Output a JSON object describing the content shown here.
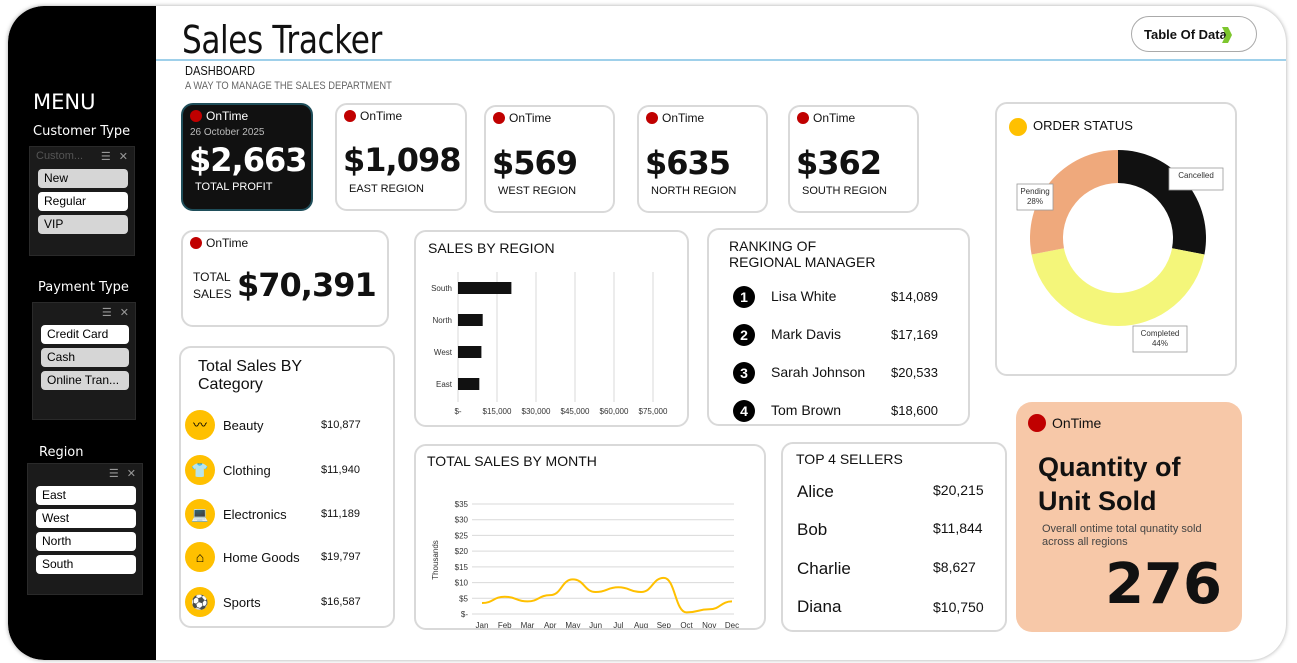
{
  "sidebar": {
    "menu_title": "MENU",
    "customer_type": {
      "label": "Customer Type",
      "header": "Custom...",
      "items": [
        "New",
        "Regular",
        "VIP"
      ]
    },
    "payment_type": {
      "label": "Payment Type",
      "items": [
        "Credit Card",
        "Cash",
        "Online Tran..."
      ]
    },
    "region": {
      "label": "Region",
      "items": [
        "East",
        "West",
        "North",
        "South"
      ]
    }
  },
  "header": {
    "title": "Sales Tracker",
    "dashboard_label": "DASHBOARD",
    "subtitle": "A WAY TO MANAGE THE SALES DEPARTMENT",
    "table_button": "Table Of Data"
  },
  "status_label": "OnTime",
  "kpis": {
    "total_profit": {
      "date": "26 October 2025",
      "value": "$2,663",
      "label": "TOTAL PROFIT"
    },
    "east": {
      "value": "$1,098",
      "label": "EAST REGION"
    },
    "west": {
      "value": "$569",
      "label": "WEST REGION"
    },
    "north": {
      "value": "$635",
      "label": "NORTH REGION"
    },
    "south": {
      "value": "$362",
      "label": "SOUTH REGION"
    },
    "total_sales": {
      "label_1": "TOTAL",
      "label_2": "SALES",
      "value": "$70,391"
    }
  },
  "category": {
    "title_1": "Total Sales BY",
    "title_2": "Category",
    "items": [
      {
        "name": "Beauty",
        "value": "$10,877",
        "icon": "beauty-icon"
      },
      {
        "name": "Clothing",
        "value": "$11,940",
        "icon": "tshirt-icon"
      },
      {
        "name": "Electronics",
        "value": "$11,189",
        "icon": "laptop-icon"
      },
      {
        "name": "Home Goods",
        "value": "$19,797",
        "icon": "home-icon"
      },
      {
        "name": "Sports",
        "value": "$16,587",
        "icon": "ball-icon"
      }
    ]
  },
  "ranking": {
    "title_1": "RANKING OF",
    "title_2": "REGIONAL MANAGER",
    "items": [
      {
        "num": "1",
        "name": "Lisa White",
        "value": "$14,089"
      },
      {
        "num": "2",
        "name": "Mark Davis",
        "value": "$17,169"
      },
      {
        "num": "3",
        "name": "Sarah Johnson",
        "value": "$20,533"
      },
      {
        "num": "4",
        "name": "Tom Brown",
        "value": "$18,600"
      }
    ]
  },
  "sellers": {
    "title": "TOP 4 SELLERS",
    "items": [
      {
        "name": "Alice",
        "value": "$20,215"
      },
      {
        "name": "Bob",
        "value": "$11,844"
      },
      {
        "name": "Charlie",
        "value": "$8,627"
      },
      {
        "name": "Diana",
        "value": "$10,750"
      }
    ]
  },
  "quantity": {
    "title_1": "Quantity of",
    "title_2": "Unit Sold",
    "desc_1": "Overall ontime total qunatity sold",
    "desc_2": "across all regions",
    "value": "276"
  },
  "colors": {
    "accent": "#ffc000",
    "status_red": "#c00000",
    "qty_bg": "#f7c8a8",
    "line": "#ffc000",
    "donut_completed": "#f4f67a",
    "donut_pending": "#efa97c",
    "donut_cancelled": "#111111"
  },
  "chart_data": [
    {
      "type": "bar",
      "title": "SALES BY REGION",
      "categories": [
        "South",
        "North",
        "West",
        "East"
      ],
      "values": [
        20533,
        9500,
        9000,
        8200
      ],
      "xticks": [
        "$-",
        "$15,000",
        "$30,000",
        "$45,000",
        "$60,000",
        "$75,000"
      ],
      "xlim": [
        0,
        75000
      ]
    },
    {
      "type": "line",
      "title": "TOTAL SALES BY MONTH",
      "ylabel": "Thousands",
      "x": [
        "Jan",
        "Feb",
        "Mar",
        "Apr",
        "May",
        "Jun",
        "Jul",
        "Aug",
        "Sep",
        "Oct",
        "Nov",
        "Dec"
      ],
      "yticks": [
        "$-",
        "$5",
        "$10",
        "$15",
        "$20",
        "$25",
        "$30",
        "$35"
      ],
      "ylim": [
        0,
        35
      ],
      "values": [
        3.5,
        5.5,
        4.0,
        6.0,
        11.0,
        7.0,
        8.5,
        7.0,
        11.5,
        0.5,
        1.5,
        4.0
      ]
    },
    {
      "type": "pie",
      "title": "ORDER STATUS",
      "labels": [
        "Cancelled",
        "Completed",
        "Pending"
      ],
      "values": [
        28,
        44,
        28
      ],
      "data_labels": [
        "Cancelled",
        "Completed\n44%",
        "Pending\n28%"
      ]
    }
  ]
}
